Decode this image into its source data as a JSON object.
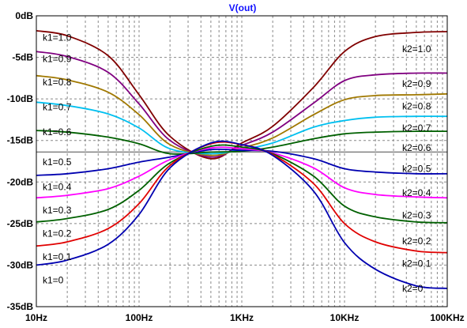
{
  "chart_data": {
    "type": "line",
    "title": "V(out)",
    "xscale": "log",
    "xlim": [
      10,
      100000
    ],
    "ylim": [
      -35,
      0
    ],
    "grid": true,
    "x_ticks": [
      {
        "value": 10,
        "label": "10Hz"
      },
      {
        "value": 100,
        "label": "100Hz"
      },
      {
        "value": 1000,
        "label": "1KHz"
      },
      {
        "value": 10000,
        "label": "10KHz"
      },
      {
        "value": 100000,
        "label": "100KHz"
      }
    ],
    "y_ticks": [
      {
        "value": 0,
        "label": "0dB"
      },
      {
        "value": -5,
        "label": "-5dB"
      },
      {
        "value": -10,
        "label": "-10dB"
      },
      {
        "value": -15,
        "label": "-15dB"
      },
      {
        "value": -20,
        "label": "-20dB"
      },
      {
        "value": -25,
        "label": "-25dB"
      },
      {
        "value": -30,
        "label": "-30dB"
      },
      {
        "value": -35,
        "label": "-35dB"
      }
    ],
    "x": [
      10,
      20,
      50,
      100,
      200,
      500,
      1000,
      2000,
      5000,
      10000,
      20000,
      50000,
      100000
    ],
    "series": [
      {
        "color": "#800000",
        "values": [
          -1.8,
          -2.4,
          -4.8,
          -9.5,
          -14.5,
          -17.2,
          -15.3,
          -13.3,
          -8.6,
          -4.3,
          -2.5,
          -2.0,
          -1.9
        ]
      },
      {
        "color": "#800080",
        "values": [
          -4.3,
          -4.9,
          -6.8,
          -10.6,
          -15.0,
          -17.0,
          -15.6,
          -14.0,
          -10.5,
          -7.8,
          -7.1,
          -6.9,
          -6.9
        ]
      },
      {
        "color": "#a07800",
        "values": [
          -7.2,
          -7.7,
          -9.2,
          -11.9,
          -15.5,
          -16.8,
          -15.9,
          -14.7,
          -11.9,
          -10.1,
          -9.6,
          -9.5,
          -9.4
        ]
      },
      {
        "color": "#00c0f0",
        "values": [
          -10.4,
          -10.8,
          -11.8,
          -13.5,
          -16.0,
          -16.6,
          -16.1,
          -15.3,
          -13.4,
          -12.6,
          -12.2,
          -12.1,
          -12.1
        ]
      },
      {
        "color": "#006000",
        "values": [
          -13.8,
          -14.0,
          -14.6,
          -15.4,
          -16.6,
          -16.4,
          -16.3,
          -15.8,
          -14.8,
          -14.2,
          -14.0,
          -13.9,
          -13.9
        ]
      },
      {
        "color": "#0000b0",
        "values": [
          -19.2,
          -19.0,
          -18.4,
          -17.6,
          -17.0,
          -16.1,
          -16.2,
          -16.3,
          -17.2,
          -18.4,
          -18.8,
          -19.0,
          -19.0
        ]
      },
      {
        "color": "#ff00ff",
        "values": [
          -21.9,
          -21.6,
          -20.8,
          -19.3,
          -17.3,
          -15.9,
          -16.0,
          -16.5,
          -18.3,
          -20.7,
          -21.5,
          -21.8,
          -21.9
        ]
      },
      {
        "color": "#006000",
        "values": [
          -24.8,
          -24.4,
          -23.3,
          -21.0,
          -17.7,
          -15.7,
          -15.8,
          -16.6,
          -19.3,
          -22.9,
          -24.2,
          -24.8,
          -24.9
        ]
      },
      {
        "color": "#e00000",
        "values": [
          -27.7,
          -27.2,
          -25.6,
          -22.6,
          -18.0,
          -15.4,
          -15.5,
          -16.7,
          -20.2,
          -25.0,
          -27.2,
          -28.3,
          -28.5
        ]
      },
      {
        "color": "#0000b0",
        "values": [
          -30.0,
          -29.4,
          -27.5,
          -23.9,
          -18.3,
          -15.3,
          -15.5,
          -16.8,
          -21.1,
          -27.3,
          -30.5,
          -32.5,
          -32.8
        ]
      }
    ],
    "reference_line": {
      "value": -16.4,
      "color": "#808080"
    },
    "left_labels": [
      {
        "text": "k1=1.0",
        "y": -2.6
      },
      {
        "text": "k1=0.9",
        "y": -5.2
      },
      {
        "text": "k1=0.8",
        "y": -8.0
      },
      {
        "text": "k1=0.7",
        "y": -11.0
      },
      {
        "text": "k1=0.6",
        "y": -14.0
      },
      {
        "text": "k1=0.5",
        "y": -17.6
      },
      {
        "text": "k1=0.4",
        "y": -20.6
      },
      {
        "text": "k1=0.3",
        "y": -23.4
      },
      {
        "text": "k1=0.2",
        "y": -26.2
      },
      {
        "text": "k1=0.1",
        "y": -29.0
      },
      {
        "text": "k1=0",
        "y": -31.8
      }
    ],
    "right_labels": [
      {
        "text": "k2=1.0",
        "y": -4.0
      },
      {
        "text": "k2=0.9",
        "y": -8.2
      },
      {
        "text": "k2=0.8",
        "y": -10.9
      },
      {
        "text": "k2=0.7",
        "y": -13.5
      },
      {
        "text": "k2=0.6",
        "y": -15.9
      },
      {
        "text": "k2=0.5",
        "y": -18.4
      },
      {
        "text": "k2=0.4",
        "y": -21.3
      },
      {
        "text": "k2=0.3",
        "y": -24.0
      },
      {
        "text": "k2=0.2",
        "y": -27.1
      },
      {
        "text": "k2=0.1",
        "y": -29.8
      },
      {
        "text": "k2=0",
        "y": -32.8
      }
    ]
  }
}
